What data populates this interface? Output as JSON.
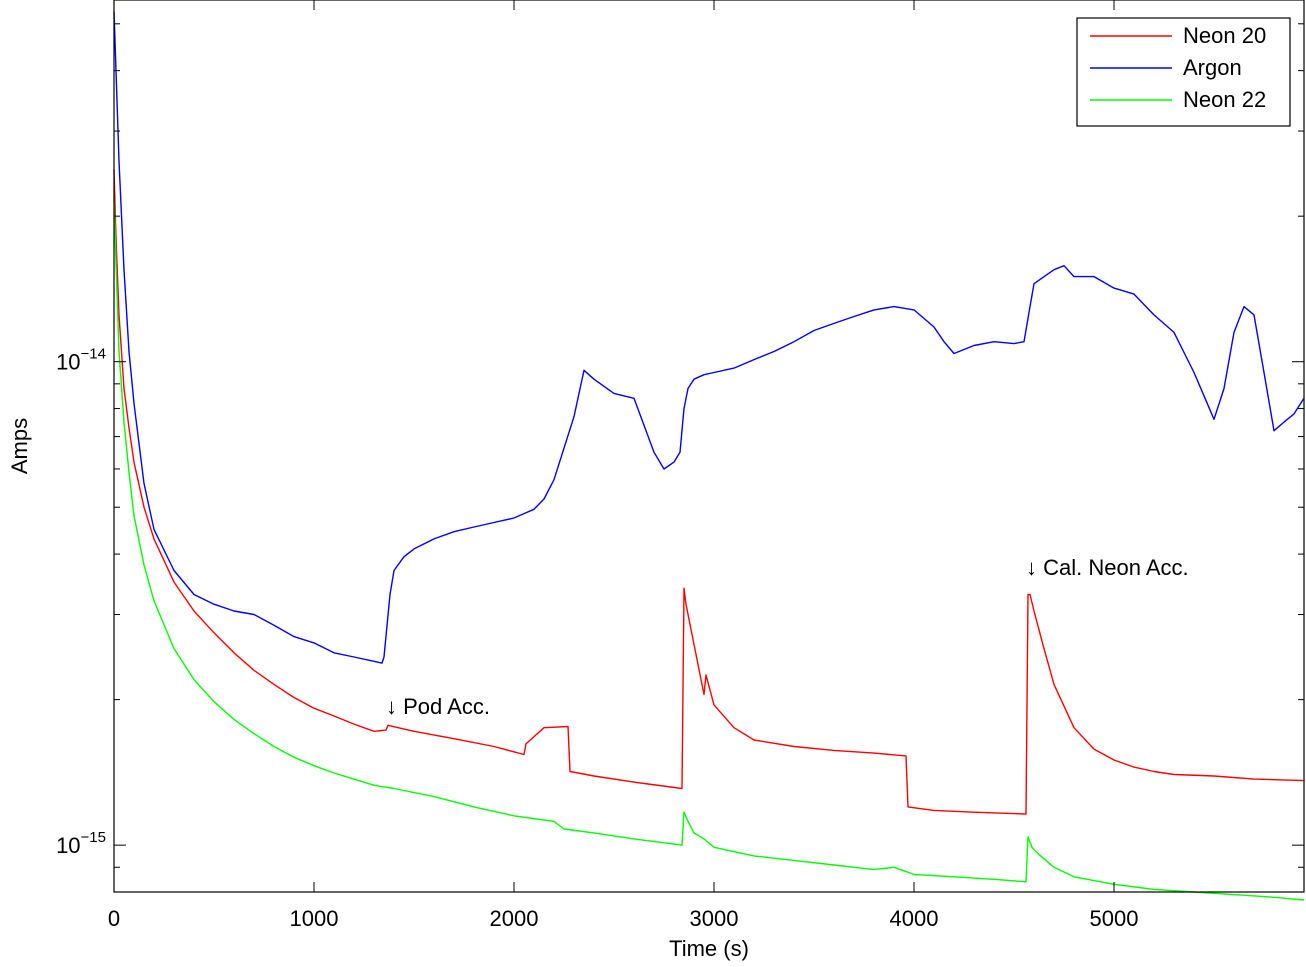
{
  "chart_data": {
    "type": "line",
    "title": "",
    "xlabel": "Time (s)",
    "ylabel": "Amps",
    "xlim": [
      0,
      5950
    ],
    "ylim": [
      8e-16,
      5.6e-14
    ],
    "yscale": "log",
    "grid": false,
    "legend_position": "top-right",
    "x_ticks": [
      0,
      1000,
      2000,
      3000,
      4000,
      5000
    ],
    "x_tick_labels": [
      "0",
      "1000",
      "2000",
      "3000",
      "4000",
      "5000"
    ],
    "y_major_ticks": [
      {
        "value": 1e-15,
        "base": "10",
        "exponent": "−15"
      },
      {
        "value": 1e-14,
        "base": "10",
        "exponent": "−14"
      }
    ],
    "series": [
      {
        "name": "Neon 20",
        "color": "#ff0000",
        "x": [
          0,
          10,
          25,
          50,
          75,
          100,
          150,
          200,
          300,
          400,
          500,
          600,
          700,
          800,
          900,
          1000,
          1100,
          1200,
          1300,
          1360,
          1370,
          1500,
          1700,
          1900,
          2050,
          2060,
          2150,
          2270,
          2280,
          2400,
          2600,
          2840,
          2850,
          2860,
          2900,
          2950,
          2960,
          3000,
          3100,
          3200,
          3400,
          3600,
          3800,
          3960,
          3970,
          4100,
          4300,
          4560,
          4570,
          4580,
          4600,
          4650,
          4700,
          4800,
          4900,
          5000,
          5100,
          5200,
          5300,
          5500,
          5700,
          5950
        ],
        "values": [
          2.5e-14,
          1.8e-14,
          1.25e-14,
          8.8e-15,
          7.3e-15,
          6.2e-15,
          5e-15,
          4.3e-15,
          3.5e-15,
          3.05e-15,
          2.75e-15,
          2.5e-15,
          2.3e-15,
          2.15e-15,
          2.02e-15,
          1.92e-15,
          1.85e-15,
          1.78e-15,
          1.72e-15,
          1.73e-15,
          1.77e-15,
          1.72e-15,
          1.66e-15,
          1.6e-15,
          1.54e-15,
          1.62e-15,
          1.75e-15,
          1.76e-15,
          1.42e-15,
          1.39e-15,
          1.35e-15,
          1.31e-15,
          3.4e-15,
          3.15e-15,
          2.6e-15,
          2.05e-15,
          2.25e-15,
          1.95e-15,
          1.75e-15,
          1.65e-15,
          1.6e-15,
          1.57e-15,
          1.55e-15,
          1.53e-15,
          1.2e-15,
          1.18e-15,
          1.17e-15,
          1.16e-15,
          3.3e-15,
          3.3e-15,
          3.05e-15,
          2.55e-15,
          2.15e-15,
          1.75e-15,
          1.58e-15,
          1.5e-15,
          1.45e-15,
          1.42e-15,
          1.4e-15,
          1.39e-15,
          1.37e-15,
          1.36e-15
        ]
      },
      {
        "name": "Argon",
        "color": "#0000ff",
        "x": [
          0,
          10,
          25,
          50,
          75,
          100,
          150,
          200,
          300,
          400,
          500,
          600,
          700,
          800,
          900,
          1000,
          1100,
          1200,
          1300,
          1340,
          1350,
          1380,
          1400,
          1450,
          1500,
          1600,
          1700,
          1800,
          1900,
          2000,
          2050,
          2100,
          2150,
          2200,
          2300,
          2350,
          2400,
          2500,
          2600,
          2700,
          2750,
          2800,
          2830,
          2850,
          2870,
          2900,
          2950,
          3000,
          3100,
          3200,
          3300,
          3400,
          3500,
          3600,
          3700,
          3800,
          3900,
          4000,
          4100,
          4150,
          4200,
          4300,
          4400,
          4500,
          4550,
          4580,
          4600,
          4700,
          4750,
          4800,
          4900,
          5000,
          5100,
          5200,
          5300,
          5400,
          5450,
          5500,
          5550,
          5600,
          5650,
          5700,
          5750,
          5800,
          5850,
          5900,
          5950
        ],
        "values": [
          5.3e-14,
          4e-14,
          2.6e-14,
          1.55e-14,
          1.05e-14,
          8.2e-15,
          5.6e-15,
          4.5e-15,
          3.7e-15,
          3.3e-15,
          3.15e-15,
          3.05e-15,
          3e-15,
          2.85e-15,
          2.7e-15,
          2.62e-15,
          2.5e-15,
          2.45e-15,
          2.4e-15,
          2.38e-15,
          2.45e-15,
          3.3e-15,
          3.7e-15,
          3.95e-15,
          4.1e-15,
          4.3e-15,
          4.45e-15,
          4.55e-15,
          4.65e-15,
          4.75e-15,
          4.85e-15,
          4.95e-15,
          5.2e-15,
          5.7e-15,
          7.7e-15,
          9.6e-15,
          9.2e-15,
          8.6e-15,
          8.4e-15,
          6.5e-15,
          6e-15,
          6.2e-15,
          6.5e-15,
          8e-15,
          8.8e-15,
          9.2e-15,
          9.4e-15,
          9.5e-15,
          9.7e-15,
          1.01e-14,
          1.05e-14,
          1.1e-14,
          1.16e-14,
          1.2e-14,
          1.24e-14,
          1.28e-14,
          1.3e-14,
          1.28e-14,
          1.18e-14,
          1.1e-14,
          1.04e-14,
          1.08e-14,
          1.1e-14,
          1.09e-14,
          1.1e-14,
          1.3e-14,
          1.45e-14,
          1.55e-14,
          1.58e-14,
          1.5e-14,
          1.5e-14,
          1.42e-14,
          1.38e-14,
          1.25e-14,
          1.15e-14,
          9.5e-15,
          8.5e-15,
          7.6e-15,
          8.8e-15,
          1.15e-14,
          1.3e-14,
          1.25e-14,
          9.5e-15,
          7.2e-15,
          7.5e-15,
          7.8e-15,
          8.4e-15
        ]
      },
      {
        "name": "Neon 22",
        "color": "#00ff00",
        "x": [
          0,
          10,
          25,
          50,
          75,
          100,
          150,
          200,
          300,
          400,
          500,
          600,
          700,
          800,
          900,
          1000,
          1100,
          1200,
          1300,
          1400,
          1600,
          1800,
          2000,
          2200,
          2250,
          2400,
          2600,
          2840,
          2850,
          2870,
          2900,
          2950,
          3000,
          3200,
          3400,
          3600,
          3800,
          3900,
          4000,
          4200,
          4400,
          4560,
          4570,
          4590,
          4620,
          4700,
          4800,
          5000,
          5200,
          5400,
          5600,
          5800,
          5950
        ],
        "values": [
          2.2e-14,
          1.6e-14,
          1.05e-14,
          7.5e-15,
          5.9e-15,
          4.8e-15,
          3.8e-15,
          3.2e-15,
          2.55e-15,
          2.2e-15,
          1.98e-15,
          1.82e-15,
          1.7e-15,
          1.6e-15,
          1.52e-15,
          1.46e-15,
          1.41e-15,
          1.37e-15,
          1.33e-15,
          1.31e-15,
          1.26e-15,
          1.2e-15,
          1.15e-15,
          1.12e-15,
          1.08e-15,
          1.06e-15,
          1.03e-15,
          1e-15,
          1.17e-15,
          1.12e-15,
          1.06e-15,
          1.03e-15,
          9.9e-16,
          9.5e-16,
          9.3e-16,
          9.1e-16,
          8.9e-16,
          9e-16,
          8.7e-16,
          8.6e-16,
          8.5e-16,
          8.4e-16,
          1.04e-15,
          9.9e-16,
          9.6e-16,
          9e-16,
          8.6e-16,
          8.3e-16,
          8.1e-16,
          8e-16,
          7.9e-16,
          7.8e-16,
          7.7e-16
        ]
      }
    ],
    "annotations": [
      {
        "text": "↓ Pod Acc.",
        "x": 1360,
        "y": 1.78e-15
      },
      {
        "text": "↓ Cal. Neon Acc.",
        "x": 4560,
        "y": 3.45e-15
      }
    ]
  }
}
